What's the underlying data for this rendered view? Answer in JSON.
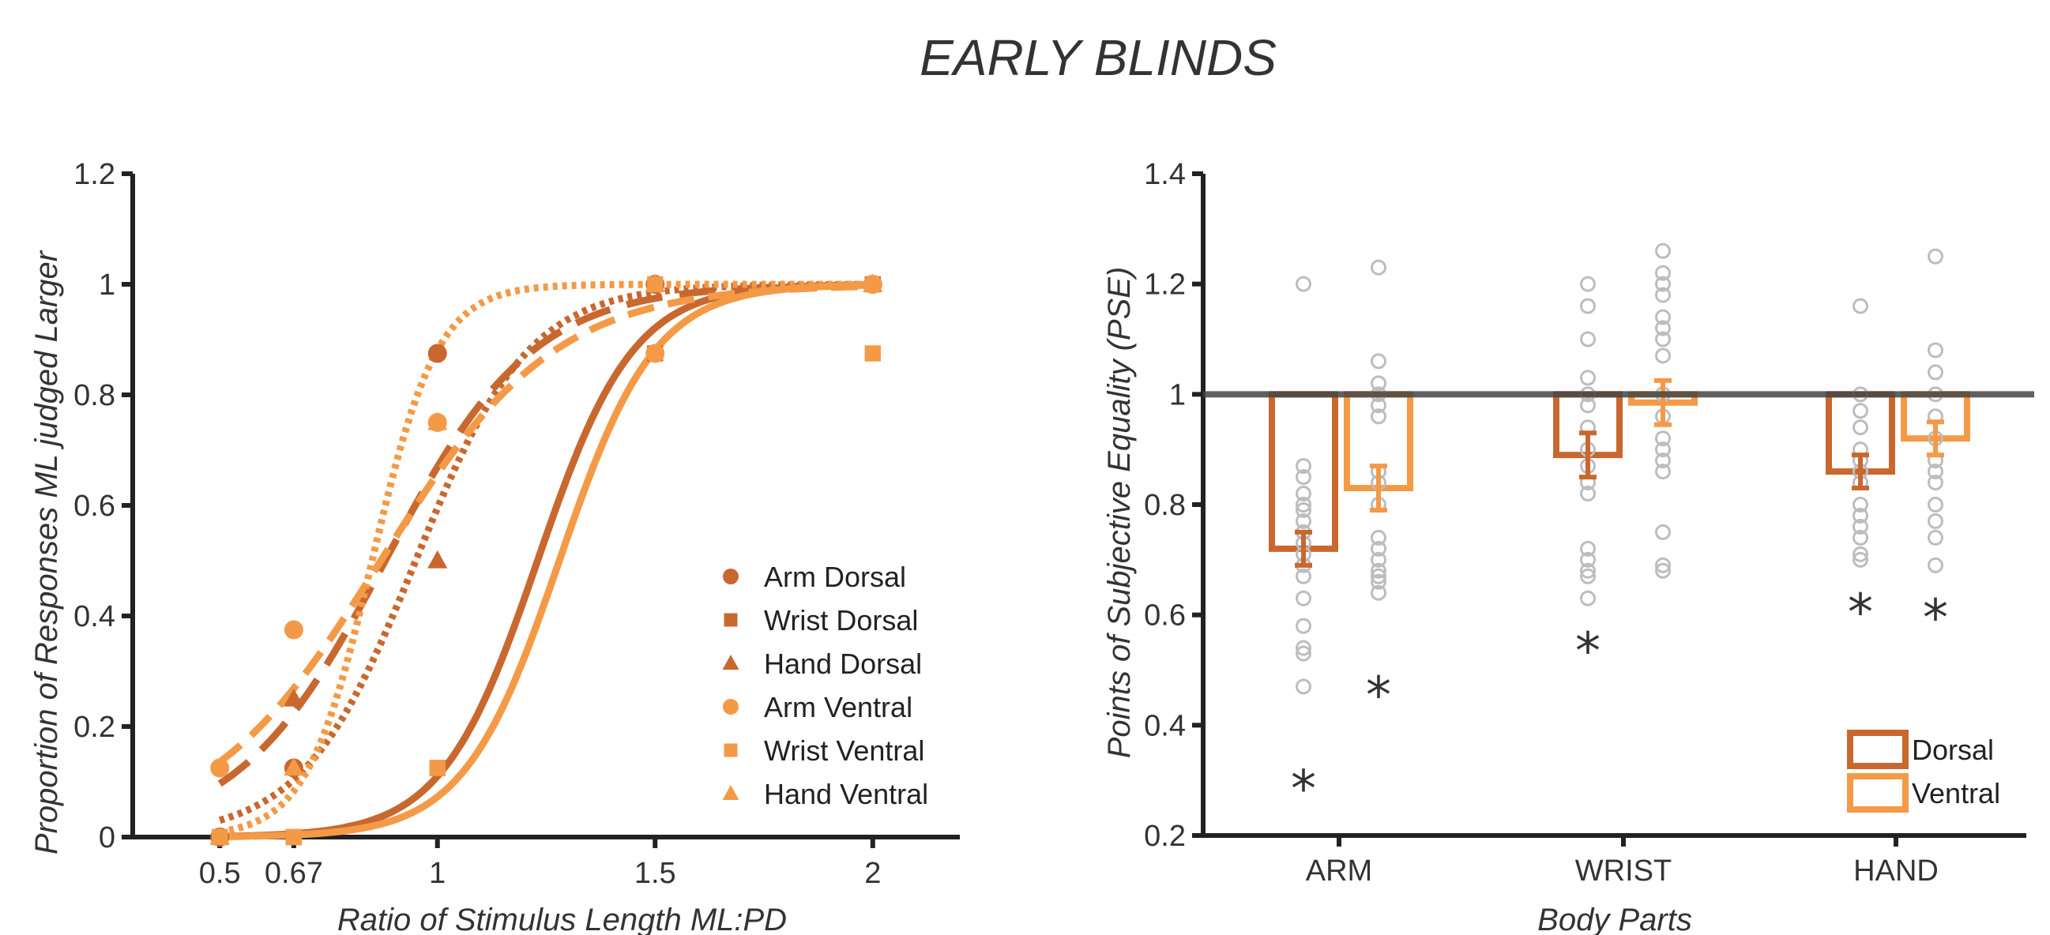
{
  "title": "EARLY BLINDS",
  "colors": {
    "dorsal": "#C8682F",
    "ventral": "#F49A47",
    "points": "#BDBDBD",
    "axis": "#222222",
    "reference": "#444444"
  },
  "chart_data": [
    {
      "type": "line",
      "xlabel": "Ratio of Stimulus Length ML:PD",
      "ylabel": "Proportion of Responses ML judged Larger",
      "xlim": [
        0.3,
        2.2
      ],
      "ylim": [
        0,
        1.2
      ],
      "x_ticks": [
        0.5,
        0.67,
        1,
        1.5,
        2
      ],
      "x_tick_labels": [
        "0.5",
        "0.67",
        "1",
        "1.5",
        "2"
      ],
      "y_ticks": [
        0,
        0.2,
        0.4,
        0.6,
        0.8,
        1,
        1.2
      ],
      "y_tick_labels": [
        "0",
        "0.2",
        "0.4",
        "0.6",
        "0.8",
        "1",
        "1.2"
      ],
      "legend_position": "bottom-right",
      "x": [
        0.5,
        0.67,
        1,
        1.5,
        2
      ],
      "series": [
        {
          "name": "Arm Dorsal",
          "marker": "circle",
          "color": "#C8682F",
          "line": "long-dash",
          "values": [
            0,
            0.125,
            0.875,
            1,
            1
          ],
          "fit": {
            "mu": 0.88,
            "s": 0.17
          }
        },
        {
          "name": "Wrist Dorsal",
          "marker": "square",
          "color": "#C8682F",
          "line": "solid",
          "values": [
            0,
            0,
            0.125,
            0.875,
            1
          ],
          "fit": {
            "mu": 1.23,
            "s": 0.11
          }
        },
        {
          "name": "Hand Dorsal",
          "marker": "triangle",
          "color": "#C8682F",
          "line": "dotted",
          "values": [
            0,
            0.25,
            0.5,
            1,
            1
          ],
          "fit": {
            "mu": 0.95,
            "s": 0.13
          }
        },
        {
          "name": "Arm Ventral",
          "marker": "circle",
          "color": "#F49A47",
          "line": "dotted",
          "values": [
            0.125,
            0.375,
            0.75,
            0.875,
            1
          ],
          "fit": {
            "mu": 0.85,
            "s": 0.075
          }
        },
        {
          "name": "Wrist Ventral",
          "marker": "square",
          "color": "#F49A47",
          "line": "solid",
          "values": [
            0,
            0,
            0.125,
            1,
            0.875
          ],
          "fit": {
            "mu": 1.28,
            "s": 0.11
          }
        },
        {
          "name": "Hand Ventral",
          "marker": "triangle",
          "color": "#F49A47",
          "line": "dashed",
          "values": [
            0,
            0.125,
            0.75,
            1,
            1
          ],
          "fit": {
            "mu": 0.87,
            "s": 0.2
          }
        }
      ]
    },
    {
      "type": "bar",
      "xlabel": "Body Parts",
      "ylabel": "Points of Subjective Equality (PSE)",
      "ylim": [
        0.2,
        1.4
      ],
      "y_ticks": [
        0.2,
        0.4,
        0.6,
        0.8,
        1,
        1.2,
        1.4
      ],
      "y_tick_labels": [
        "0.2",
        "0.4",
        "0.6",
        "0.8",
        "1",
        "1.2",
        "1.4"
      ],
      "reference_line": 1,
      "bar_base": 1,
      "legend_position": "bottom-right",
      "categories": [
        "ARM",
        "WRIST",
        "HAND"
      ],
      "series": [
        {
          "name": "Dorsal",
          "color": "#C8682F",
          "values": [
            0.72,
            0.89,
            0.86
          ],
          "errors": [
            0.03,
            0.04,
            0.03
          ],
          "significant": [
            true,
            true,
            true
          ],
          "points": [
            [
              1.2,
              0.87,
              0.85,
              0.82,
              0.8,
              0.79,
              0.77,
              0.75,
              0.73,
              0.71,
              0.69,
              0.67,
              0.63,
              0.58,
              0.54,
              0.53,
              0.47
            ],
            [
              1.2,
              1.16,
              1.1,
              1.03,
              1.0,
              0.98,
              0.94,
              0.9,
              0.87,
              0.84,
              0.82,
              0.72,
              0.7,
              0.68,
              0.67,
              0.63
            ],
            [
              1.16,
              1.0,
              0.97,
              0.94,
              0.9,
              0.88,
              0.86,
              0.84,
              0.8,
              0.78,
              0.76,
              0.74,
              0.71,
              0.7
            ]
          ]
        },
        {
          "name": "Ventral",
          "color": "#F49A47",
          "values": [
            0.83,
            0.985,
            0.92
          ],
          "errors": [
            0.04,
            0.04,
            0.03
          ],
          "significant": [
            true,
            false,
            true
          ],
          "points": [
            [
              1.23,
              1.06,
              1.02,
              1.0,
              0.98,
              0.96,
              0.86,
              0.84,
              0.8,
              0.74,
              0.72,
              0.7,
              0.68,
              0.67,
              0.66,
              0.64
            ],
            [
              1.26,
              1.22,
              1.2,
              1.18,
              1.14,
              1.12,
              1.1,
              1.07,
              1.0,
              0.96,
              0.92,
              0.9,
              0.88,
              0.86,
              0.75,
              0.69,
              0.68
            ],
            [
              1.25,
              1.08,
              1.04,
              1.0,
              0.96,
              0.92,
              0.88,
              0.86,
              0.84,
              0.8,
              0.77,
              0.74,
              0.69
            ]
          ]
        }
      ]
    }
  ]
}
